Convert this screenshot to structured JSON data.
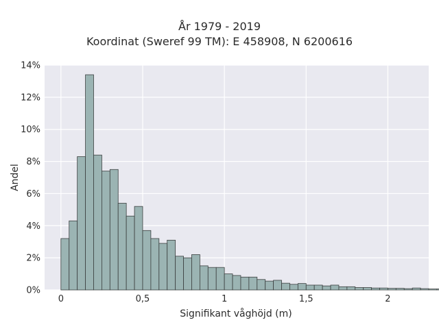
{
  "chart_data": {
    "type": "bar",
    "title": "År 1979 - 2019",
    "subtitle": "Koordinat (Sweref 99 TM): E 458908, N 6200616",
    "xlabel": "Signifikant våghöjd (m)",
    "ylabel": "Andel",
    "xlim": [
      -0.1,
      2.25
    ],
    "ylim": [
      0,
      14
    ],
    "x_ticks": [
      0,
      0.5,
      1,
      1.5,
      2
    ],
    "x_tick_labels": [
      "0",
      "0,5",
      "1",
      "1,5",
      "2"
    ],
    "y_ticks": [
      0,
      2,
      4,
      6,
      8,
      10,
      12,
      14
    ],
    "y_tick_labels": [
      "0%",
      "2%",
      "4%",
      "6%",
      "8%",
      "10%",
      "12%",
      "14%"
    ],
    "bin_width": 0.05,
    "bin_start": 0,
    "values": [
      3.2,
      4.3,
      8.3,
      13.4,
      8.4,
      7.4,
      7.5,
      5.4,
      4.6,
      5.2,
      3.7,
      3.2,
      2.9,
      3.1,
      2.1,
      2.0,
      2.2,
      1.5,
      1.4,
      1.4,
      1.0,
      0.9,
      0.8,
      0.8,
      0.65,
      0.55,
      0.6,
      0.42,
      0.35,
      0.4,
      0.3,
      0.3,
      0.25,
      0.3,
      0.2,
      0.2,
      0.15,
      0.15,
      0.12,
      0.12,
      0.1,
      0.1,
      0.08,
      0.12,
      0.08,
      0.06,
      0.06,
      0.04,
      0.03,
      0.02
    ],
    "bar_color": "#9bb4b3",
    "bar_edge_color": "#3b3f3f",
    "background_color": "#e9e9f0",
    "grid": true
  }
}
